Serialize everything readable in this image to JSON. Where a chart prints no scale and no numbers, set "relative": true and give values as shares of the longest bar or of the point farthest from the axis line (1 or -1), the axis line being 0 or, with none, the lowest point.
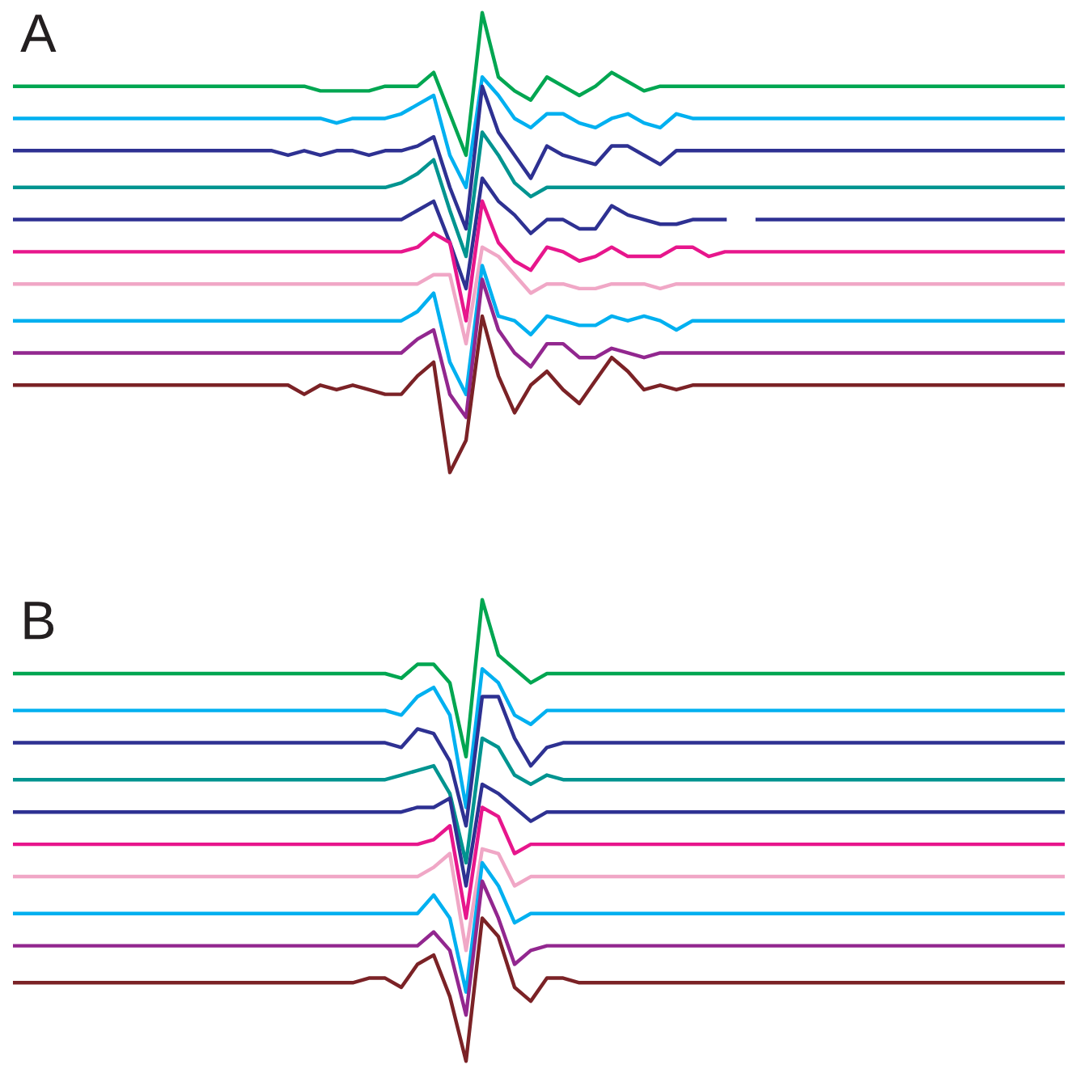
{
  "chart_data": [
    {
      "type": "line",
      "title": "A",
      "relative": true,
      "categories": [
        null,
        null,
        null,
        null,
        null,
        null,
        null,
        null,
        null,
        null,
        null,
        null,
        null,
        null,
        null,
        null,
        null,
        null,
        null,
        null,
        null,
        null,
        null,
        null,
        null,
        null,
        null,
        null,
        null,
        null,
        null,
        null,
        null,
        null,
        null,
        null,
        null,
        null,
        null,
        null,
        null,
        null,
        null,
        null,
        null,
        null,
        null,
        null,
        null,
        null,
        null,
        null,
        null,
        null,
        null,
        null,
        null,
        null,
        null,
        null,
        null,
        null,
        null,
        null,
        null,
        null
      ],
      "series": [
        {
          "color": "#00a651",
          "values": [
            0.84,
            0.84,
            0.84,
            0.84,
            0.84,
            0.84,
            0.84,
            0.84,
            0.84,
            0.84,
            0.84,
            0.84,
            0.84,
            0.84,
            0.84,
            0.84,
            0.84,
            0.84,
            0.84,
            0.83,
            0.83,
            0.83,
            0.83,
            0.84,
            0.84,
            0.84,
            0.87,
            0.78,
            0.69,
            1.0,
            0.86,
            0.83,
            0.81,
            0.86,
            0.84,
            0.82,
            0.84,
            0.87,
            0.85,
            0.83,
            0.84,
            0.84,
            0.84,
            0.84,
            0.84,
            0.84,
            0.84,
            0.84,
            0.84,
            0.84,
            0.84,
            0.84,
            0.84,
            0.84,
            0.84,
            0.84,
            0.84,
            0.84,
            0.84,
            0.84,
            0.84,
            0.84,
            0.84,
            0.84,
            0.84,
            0.84
          ]
        },
        {
          "color": "#00b0f0",
          "values": [
            0.77,
            0.77,
            0.77,
            0.77,
            0.77,
            0.77,
            0.77,
            0.77,
            0.77,
            0.77,
            0.77,
            0.77,
            0.77,
            0.77,
            0.77,
            0.77,
            0.77,
            0.77,
            0.77,
            0.77,
            0.76,
            0.77,
            0.77,
            0.77,
            0.78,
            0.8,
            0.82,
            0.69,
            0.62,
            0.86,
            0.82,
            0.77,
            0.75,
            0.78,
            0.78,
            0.76,
            0.75,
            0.77,
            0.78,
            0.76,
            0.75,
            0.78,
            0.77,
            0.77,
            0.77,
            0.77,
            0.77,
            0.77,
            0.77,
            0.77,
            0.77,
            0.77,
            0.77,
            0.77,
            0.77,
            0.77,
            0.77,
            0.77,
            0.77,
            0.77,
            0.77,
            0.77,
            0.77,
            0.77,
            0.77,
            0.77
          ]
        },
        {
          "color": "#2e3192",
          "values": [
            0.7,
            0.7,
            0.7,
            0.7,
            0.7,
            0.7,
            0.7,
            0.7,
            0.7,
            0.7,
            0.7,
            0.7,
            0.7,
            0.7,
            0.7,
            0.7,
            0.7,
            0.69,
            0.7,
            0.69,
            0.7,
            0.7,
            0.69,
            0.7,
            0.7,
            0.71,
            0.73,
            0.62,
            0.53,
            0.84,
            0.74,
            0.69,
            0.64,
            0.71,
            0.69,
            0.68,
            0.67,
            0.71,
            0.71,
            0.69,
            0.67,
            0.7,
            0.7,
            0.7,
            0.7,
            0.7,
            0.7,
            0.7,
            0.7,
            0.7,
            0.7,
            0.7,
            0.7,
            0.7,
            0.7,
            0.7,
            0.7,
            0.7,
            0.7,
            0.7,
            0.7,
            0.7,
            0.7,
            0.7,
            0.7,
            0.7
          ]
        },
        {
          "color": "#009490",
          "values": [
            0.62,
            0.62,
            0.62,
            0.62,
            0.62,
            0.62,
            0.62,
            0.62,
            0.62,
            0.62,
            0.62,
            0.62,
            0.62,
            0.62,
            0.62,
            0.62,
            0.62,
            0.62,
            0.62,
            0.62,
            0.62,
            0.62,
            0.62,
            0.62,
            0.63,
            0.65,
            0.68,
            0.57,
            0.47,
            0.74,
            0.69,
            0.63,
            0.6,
            0.62,
            0.62,
            0.62,
            0.62,
            0.62,
            0.62,
            0.62,
            0.62,
            0.62,
            0.62,
            0.62,
            0.62,
            0.62,
            0.62,
            0.62,
            0.62,
            0.62,
            0.62,
            0.62,
            0.62,
            0.62,
            0.62,
            0.62,
            0.62,
            0.62,
            0.62,
            0.62,
            0.62,
            0.62,
            0.62,
            0.62,
            0.62,
            0.62
          ]
        },
        {
          "color": "#2e3192",
          "values": [
            0.55,
            0.55,
            0.55,
            0.55,
            0.55,
            0.55,
            0.55,
            0.55,
            0.55,
            0.55,
            0.55,
            0.55,
            0.55,
            0.55,
            0.55,
            0.55,
            0.55,
            0.55,
            0.55,
            0.55,
            0.55,
            0.55,
            0.55,
            0.55,
            0.55,
            0.57,
            0.59,
            0.5,
            0.4,
            0.64,
            0.59,
            0.56,
            0.52,
            0.55,
            0.55,
            0.53,
            0.53,
            0.58,
            0.56,
            0.55,
            0.54,
            0.54,
            0.55,
            0.55,
            0.55,
            null,
            0.55,
            0.55,
            0.55,
            0.55,
            0.55,
            0.55,
            0.55,
            0.55,
            0.55,
            0.55,
            0.55,
            0.55,
            0.55,
            0.55,
            0.55,
            0.55,
            0.55,
            0.55,
            0.55,
            0.55
          ]
        },
        {
          "color": "#e7168c",
          "values": [
            0.48,
            0.48,
            0.48,
            0.48,
            0.48,
            0.48,
            0.48,
            0.48,
            0.48,
            0.48,
            0.48,
            0.48,
            0.48,
            0.48,
            0.48,
            0.48,
            0.48,
            0.48,
            0.48,
            0.48,
            0.48,
            0.48,
            0.48,
            0.48,
            0.48,
            0.49,
            0.52,
            0.5,
            0.33,
            0.59,
            0.5,
            0.46,
            0.44,
            0.49,
            0.48,
            0.46,
            0.47,
            0.49,
            0.47,
            0.47,
            0.47,
            0.49,
            0.49,
            0.47,
            0.48,
            0.48,
            0.48,
            0.48,
            0.48,
            0.48,
            0.48,
            0.48,
            0.48,
            0.48,
            0.48,
            0.48,
            0.48,
            0.48,
            0.48,
            0.48,
            0.48,
            0.48,
            0.48,
            0.48,
            0.48,
            0.48
          ]
        },
        {
          "color": "#f0a7c6",
          "values": [
            0.41,
            0.41,
            0.41,
            0.41,
            0.41,
            0.41,
            0.41,
            0.41,
            0.41,
            0.41,
            0.41,
            0.41,
            0.41,
            0.41,
            0.41,
            0.41,
            0.41,
            0.41,
            0.41,
            0.41,
            0.41,
            0.41,
            0.41,
            0.41,
            0.41,
            0.41,
            0.43,
            0.43,
            0.28,
            0.49,
            0.47,
            0.43,
            0.39,
            0.41,
            0.41,
            0.4,
            0.4,
            0.41,
            0.41,
            0.41,
            0.4,
            0.41,
            0.41,
            0.41,
            0.41,
            0.41,
            0.41,
            0.41,
            0.41,
            0.41,
            0.41,
            0.41,
            0.41,
            0.41,
            0.41,
            0.41,
            0.41,
            0.41,
            0.41,
            0.41,
            0.41,
            0.41,
            0.41,
            0.41,
            0.41,
            0.41
          ]
        },
        {
          "color": "#00b0f0",
          "values": [
            0.33,
            0.33,
            0.33,
            0.33,
            0.33,
            0.33,
            0.33,
            0.33,
            0.33,
            0.33,
            0.33,
            0.33,
            0.33,
            0.33,
            0.33,
            0.33,
            0.33,
            0.33,
            0.33,
            0.33,
            0.33,
            0.33,
            0.33,
            0.33,
            0.33,
            0.35,
            0.39,
            0.24,
            0.17,
            0.45,
            0.34,
            0.33,
            0.3,
            0.34,
            0.33,
            0.32,
            0.32,
            0.34,
            0.33,
            0.34,
            0.33,
            0.31,
            0.33,
            0.33,
            0.33,
            0.33,
            0.33,
            0.33,
            0.33,
            0.33,
            0.33,
            0.33,
            0.33,
            0.33,
            0.33,
            0.33,
            0.33,
            0.33,
            0.33,
            0.33,
            0.33,
            0.33,
            0.33,
            0.33,
            0.33,
            0.33
          ]
        },
        {
          "color": "#92278f",
          "values": [
            0.26,
            0.26,
            0.26,
            0.26,
            0.26,
            0.26,
            0.26,
            0.26,
            0.26,
            0.26,
            0.26,
            0.26,
            0.26,
            0.26,
            0.26,
            0.26,
            0.26,
            0.26,
            0.26,
            0.26,
            0.26,
            0.26,
            0.26,
            0.26,
            0.26,
            0.29,
            0.31,
            0.17,
            0.12,
            0.42,
            0.31,
            0.26,
            0.23,
            0.28,
            0.28,
            0.25,
            0.25,
            0.27,
            0.26,
            0.25,
            0.26,
            0.26,
            0.26,
            0.26,
            0.26,
            0.26,
            0.26,
            0.26,
            0.26,
            0.26,
            0.26,
            0.26,
            0.26,
            0.26,
            0.26,
            0.26,
            0.26,
            0.26,
            0.26,
            0.26,
            0.26,
            0.26,
            0.26,
            0.26,
            0.26,
            0.26
          ]
        },
        {
          "color": "#7b2226",
          "values": [
            0.19,
            0.19,
            0.19,
            0.19,
            0.19,
            0.19,
            0.19,
            0.19,
            0.19,
            0.19,
            0.19,
            0.19,
            0.19,
            0.19,
            0.19,
            0.19,
            0.19,
            0.19,
            0.17,
            0.19,
            0.18,
            0.19,
            0.18,
            0.17,
            0.17,
            0.21,
            0.24,
            0.0,
            0.07,
            0.34,
            0.21,
            0.13,
            0.19,
            0.22,
            0.18,
            0.15,
            0.2,
            0.25,
            0.22,
            0.18,
            0.19,
            0.18,
            0.19,
            0.19,
            0.19,
            0.19,
            0.19,
            0.19,
            0.19,
            0.19,
            0.19,
            0.19,
            0.19,
            0.19,
            0.19,
            0.19,
            0.19,
            0.19,
            0.19,
            0.19,
            0.19,
            0.19,
            0.19,
            0.19,
            0.19,
            0.19
          ]
        }
      ]
    },
    {
      "type": "line",
      "title": "B",
      "relative": true,
      "categories": [
        null,
        null,
        null,
        null,
        null,
        null,
        null,
        null,
        null,
        null,
        null,
        null,
        null,
        null,
        null,
        null,
        null,
        null,
        null,
        null,
        null,
        null,
        null,
        null,
        null,
        null,
        null,
        null,
        null,
        null,
        null,
        null,
        null,
        null,
        null,
        null,
        null,
        null,
        null,
        null,
        null,
        null,
        null,
        null,
        null,
        null,
        null,
        null,
        null,
        null,
        null,
        null,
        null,
        null,
        null,
        null,
        null,
        null,
        null,
        null,
        null,
        null,
        null,
        null,
        null,
        null
      ],
      "series": [
        {
          "color": "#00a651",
          "values": [
            0.84,
            0.84,
            0.84,
            0.84,
            0.84,
            0.84,
            0.84,
            0.84,
            0.84,
            0.84,
            0.84,
            0.84,
            0.84,
            0.84,
            0.84,
            0.84,
            0.84,
            0.84,
            0.84,
            0.84,
            0.84,
            0.84,
            0.84,
            0.84,
            0.83,
            0.86,
            0.86,
            0.82,
            0.66,
            1.0,
            0.88,
            0.85,
            0.82,
            0.84,
            0.84,
            0.84,
            0.84,
            0.84,
            0.84,
            0.84,
            0.84,
            0.84,
            0.84,
            0.84,
            0.84,
            0.84,
            0.84,
            0.84,
            0.84,
            0.84,
            0.84,
            0.84,
            0.84,
            0.84,
            0.84,
            0.84,
            0.84,
            0.84,
            0.84,
            0.84,
            0.84,
            0.84,
            0.84,
            0.84,
            0.84,
            0.84
          ]
        },
        {
          "color": "#00b0f0",
          "values": [
            0.76,
            0.76,
            0.76,
            0.76,
            0.76,
            0.76,
            0.76,
            0.76,
            0.76,
            0.76,
            0.76,
            0.76,
            0.76,
            0.76,
            0.76,
            0.76,
            0.76,
            0.76,
            0.76,
            0.76,
            0.76,
            0.76,
            0.76,
            0.76,
            0.75,
            0.79,
            0.81,
            0.75,
            0.55,
            0.85,
            0.82,
            0.75,
            0.73,
            0.76,
            0.76,
            0.76,
            0.76,
            0.76,
            0.76,
            0.76,
            0.76,
            0.76,
            0.76,
            0.76,
            0.76,
            0.76,
            0.76,
            0.76,
            0.76,
            0.76,
            0.76,
            0.76,
            0.76,
            0.76,
            0.76,
            0.76,
            0.76,
            0.76,
            0.76,
            0.76,
            0.76,
            0.76,
            0.76,
            0.76,
            0.76,
            0.76
          ]
        },
        {
          "color": "#2e3192",
          "values": [
            0.69,
            0.69,
            0.69,
            0.69,
            0.69,
            0.69,
            0.69,
            0.69,
            0.69,
            0.69,
            0.69,
            0.69,
            0.69,
            0.69,
            0.69,
            0.69,
            0.69,
            0.69,
            0.69,
            0.69,
            0.69,
            0.69,
            0.69,
            0.69,
            0.68,
            0.72,
            0.71,
            0.65,
            0.51,
            0.79,
            0.79,
            0.7,
            0.64,
            0.68,
            0.69,
            0.69,
            0.69,
            0.69,
            0.69,
            0.69,
            0.69,
            0.69,
            0.69,
            0.69,
            0.69,
            0.69,
            0.69,
            0.69,
            0.69,
            0.69,
            0.69,
            0.69,
            0.69,
            0.69,
            0.69,
            0.69,
            0.69,
            0.69,
            0.69,
            0.69,
            0.69,
            0.69,
            0.69,
            0.69,
            0.69,
            0.69
          ]
        },
        {
          "color": "#009490",
          "values": [
            0.61,
            0.61,
            0.61,
            0.61,
            0.61,
            0.61,
            0.61,
            0.61,
            0.61,
            0.61,
            0.61,
            0.61,
            0.61,
            0.61,
            0.61,
            0.61,
            0.61,
            0.61,
            0.61,
            0.61,
            0.61,
            0.61,
            0.61,
            0.61,
            0.62,
            0.63,
            0.64,
            0.58,
            0.43,
            0.7,
            0.68,
            0.62,
            0.6,
            0.62,
            0.61,
            0.61,
            0.61,
            0.61,
            0.61,
            0.61,
            0.61,
            0.61,
            0.61,
            0.61,
            0.61,
            0.61,
            0.61,
            0.61,
            0.61,
            0.61,
            0.61,
            0.61,
            0.61,
            0.61,
            0.61,
            0.61,
            0.61,
            0.61,
            0.61,
            0.61,
            0.61,
            0.61,
            0.61,
            0.61,
            0.61,
            0.61
          ]
        },
        {
          "color": "#2e3192",
          "values": [
            0.54,
            0.54,
            0.54,
            0.54,
            0.54,
            0.54,
            0.54,
            0.54,
            0.54,
            0.54,
            0.54,
            0.54,
            0.54,
            0.54,
            0.54,
            0.54,
            0.54,
            0.54,
            0.54,
            0.54,
            0.54,
            0.54,
            0.54,
            0.54,
            0.54,
            0.55,
            0.55,
            0.57,
            0.38,
            0.6,
            0.58,
            0.55,
            0.52,
            0.54,
            0.54,
            0.54,
            0.54,
            0.54,
            0.54,
            0.54,
            0.54,
            0.54,
            0.54,
            0.54,
            0.54,
            0.54,
            0.54,
            0.54,
            0.54,
            0.54,
            0.54,
            0.54,
            0.54,
            0.54,
            0.54,
            0.54,
            0.54,
            0.54,
            0.54,
            0.54,
            0.54,
            0.54,
            0.54,
            0.54,
            0.54,
            0.54
          ]
        },
        {
          "color": "#e7168c",
          "values": [
            0.47,
            0.47,
            0.47,
            0.47,
            0.47,
            0.47,
            0.47,
            0.47,
            0.47,
            0.47,
            0.47,
            0.47,
            0.47,
            0.47,
            0.47,
            0.47,
            0.47,
            0.47,
            0.47,
            0.47,
            0.47,
            0.47,
            0.47,
            0.47,
            0.47,
            0.47,
            0.48,
            0.51,
            0.31,
            0.55,
            0.53,
            0.45,
            0.47,
            0.47,
            0.47,
            0.47,
            0.47,
            0.47,
            0.47,
            0.47,
            0.47,
            0.47,
            0.47,
            0.47,
            0.47,
            0.47,
            0.47,
            0.47,
            0.47,
            0.47,
            0.47,
            0.47,
            0.47,
            0.47,
            0.47,
            0.47,
            0.47,
            0.47,
            0.47,
            0.47,
            0.47,
            0.47,
            0.47,
            0.47,
            0.47,
            0.47
          ]
        },
        {
          "color": "#f0a7c6",
          "values": [
            0.4,
            0.4,
            0.4,
            0.4,
            0.4,
            0.4,
            0.4,
            0.4,
            0.4,
            0.4,
            0.4,
            0.4,
            0.4,
            0.4,
            0.4,
            0.4,
            0.4,
            0.4,
            0.4,
            0.4,
            0.4,
            0.4,
            0.4,
            0.4,
            0.4,
            0.4,
            0.42,
            0.45,
            0.24,
            0.46,
            0.45,
            0.38,
            0.4,
            0.4,
            0.4,
            0.4,
            0.4,
            0.4,
            0.4,
            0.4,
            0.4,
            0.4,
            0.4,
            0.4,
            0.4,
            0.4,
            0.4,
            0.4,
            0.4,
            0.4,
            0.4,
            0.4,
            0.4,
            0.4,
            0.4,
            0.4,
            0.4,
            0.4,
            0.4,
            0.4,
            0.4,
            0.4,
            0.4,
            0.4,
            0.4,
            0.4
          ]
        },
        {
          "color": "#00b0f0",
          "values": [
            0.32,
            0.32,
            0.32,
            0.32,
            0.32,
            0.32,
            0.32,
            0.32,
            0.32,
            0.32,
            0.32,
            0.32,
            0.32,
            0.32,
            0.32,
            0.32,
            0.32,
            0.32,
            0.32,
            0.32,
            0.32,
            0.32,
            0.32,
            0.32,
            0.32,
            0.32,
            0.36,
            0.31,
            0.15,
            0.43,
            0.38,
            0.3,
            0.32,
            0.32,
            0.32,
            0.32,
            0.32,
            0.32,
            0.32,
            0.32,
            0.32,
            0.32,
            0.32,
            0.32,
            0.32,
            0.32,
            0.32,
            0.32,
            0.32,
            0.32,
            0.32,
            0.32,
            0.32,
            0.32,
            0.32,
            0.32,
            0.32,
            0.32,
            0.32,
            0.32,
            0.32,
            0.32,
            0.32,
            0.32,
            0.32,
            0.32
          ]
        },
        {
          "color": "#92278f",
          "values": [
            0.25,
            0.25,
            0.25,
            0.25,
            0.25,
            0.25,
            0.25,
            0.25,
            0.25,
            0.25,
            0.25,
            0.25,
            0.25,
            0.25,
            0.25,
            0.25,
            0.25,
            0.25,
            0.25,
            0.25,
            0.25,
            0.25,
            0.25,
            0.25,
            0.25,
            0.25,
            0.28,
            0.24,
            0.1,
            0.39,
            0.31,
            0.21,
            0.24,
            0.25,
            0.25,
            0.25,
            0.25,
            0.25,
            0.25,
            0.25,
            0.25,
            0.25,
            0.25,
            0.25,
            0.25,
            0.25,
            0.25,
            0.25,
            0.25,
            0.25,
            0.25,
            0.25,
            0.25,
            0.25,
            0.25,
            0.25,
            0.25,
            0.25,
            0.25,
            0.25,
            0.25,
            0.25,
            0.25,
            0.25,
            0.25,
            0.25
          ]
        },
        {
          "color": "#7b2226",
          "values": [
            0.17,
            0.17,
            0.17,
            0.17,
            0.17,
            0.17,
            0.17,
            0.17,
            0.17,
            0.17,
            0.17,
            0.17,
            0.17,
            0.17,
            0.17,
            0.17,
            0.17,
            0.17,
            0.17,
            0.17,
            0.17,
            0.17,
            0.18,
            0.18,
            0.16,
            0.21,
            0.23,
            0.14,
            0.0,
            0.31,
            0.27,
            0.16,
            0.13,
            0.18,
            0.18,
            0.17,
            0.17,
            0.17,
            0.17,
            0.17,
            0.17,
            0.17,
            0.17,
            0.17,
            0.17,
            0.17,
            0.17,
            0.17,
            0.17,
            0.17,
            0.17,
            0.17,
            0.17,
            0.17,
            0.17,
            0.17,
            0.17,
            0.17,
            0.17,
            0.17,
            0.17,
            0.17,
            0.17,
            0.17,
            0.17,
            0.17
          ]
        }
      ]
    }
  ]
}
